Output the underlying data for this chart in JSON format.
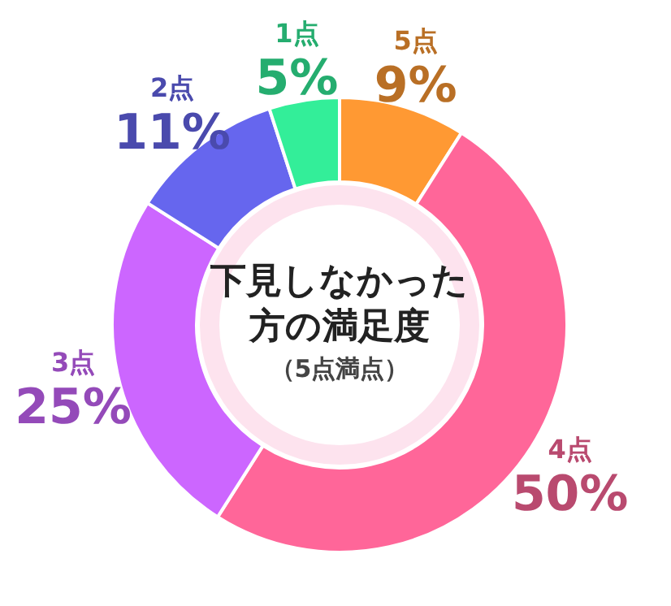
{
  "chart_data": {
    "type": "donut",
    "title": "下見しなかった方の満足度",
    "subtitle": "（5点満点）",
    "categories": [
      "5点",
      "4点",
      "3点",
      "2点",
      "1点"
    ],
    "values": [
      9,
      50,
      25,
      11,
      5
    ],
    "value_labels": [
      "9%",
      "50%",
      "25%",
      "11%",
      "5%"
    ],
    "colors": [
      "#ff9933",
      "#ff6699",
      "#cc66ff",
      "#6666ee",
      "#33ee99"
    ],
    "legend": false
  }
}
